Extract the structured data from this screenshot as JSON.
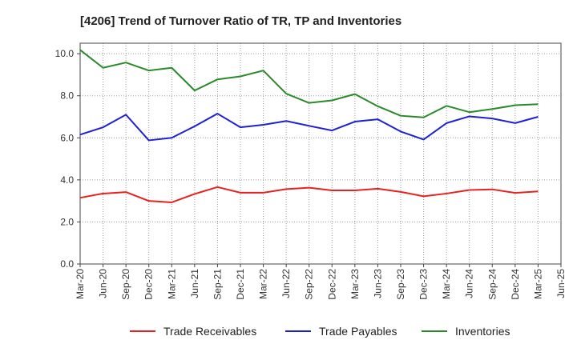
{
  "chart_data": {
    "type": "line",
    "title": "[4206]  Trend of Turnover Ratio of TR, TP and Inventories",
    "xlabel": "",
    "ylabel": "",
    "ylim": [
      0,
      10.5
    ],
    "yticks": [
      "0.0",
      "2.0",
      "4.0",
      "6.0",
      "8.0",
      "10.0"
    ],
    "ytick_values": [
      0,
      2,
      4,
      6,
      8,
      10
    ],
    "xtick_labels": [
      "Mar-20",
      "Jun-20",
      "Sep-20",
      "Dec-20",
      "Mar-21",
      "Jun-21",
      "Sep-21",
      "Dec-21",
      "Mar-22",
      "Jun-22",
      "Sep-22",
      "Dec-22",
      "Mar-23",
      "Jun-23",
      "Sep-23",
      "Dec-23",
      "Mar-24",
      "Jun-24",
      "Sep-24",
      "Dec-24",
      "Mar-25",
      "Jun-25"
    ],
    "categories": [
      "Mar-20",
      "Jun-20",
      "Sep-20",
      "Dec-20",
      "Mar-21",
      "Jun-21",
      "Sep-21",
      "Dec-21",
      "Mar-22",
      "Jun-22",
      "Sep-22",
      "Dec-22",
      "Mar-23",
      "Jun-23",
      "Sep-23",
      "Dec-23",
      "Mar-24",
      "Jun-24",
      "Sep-24",
      "Dec-24",
      "Mar-25"
    ],
    "grid": true,
    "legend_position": "bottom",
    "series": [
      {
        "name": "Trade Receivables",
        "color": "#e8211f",
        "values": [
          3.15,
          3.35,
          3.42,
          3.0,
          2.93,
          3.33,
          3.66,
          3.39,
          3.39,
          3.56,
          3.63,
          3.5,
          3.5,
          3.58,
          3.43,
          3.22,
          3.35,
          3.52,
          3.55,
          3.38,
          3.45
        ]
      },
      {
        "name": "Trade Payables",
        "color": "#1f1fd6",
        "values": [
          6.15,
          6.5,
          7.1,
          5.88,
          6.0,
          6.55,
          7.15,
          6.5,
          6.62,
          6.8,
          6.57,
          6.35,
          6.77,
          6.88,
          6.3,
          5.92,
          6.7,
          7.02,
          6.92,
          6.7,
          7.0
        ]
      },
      {
        "name": "Inventories",
        "color": "#2a8a2a",
        "values": [
          10.18,
          9.33,
          9.58,
          9.2,
          9.33,
          8.25,
          8.78,
          8.92,
          9.2,
          8.1,
          7.66,
          7.78,
          8.08,
          7.5,
          7.05,
          6.97,
          7.52,
          7.22,
          7.37,
          7.55,
          7.6
        ]
      }
    ]
  }
}
